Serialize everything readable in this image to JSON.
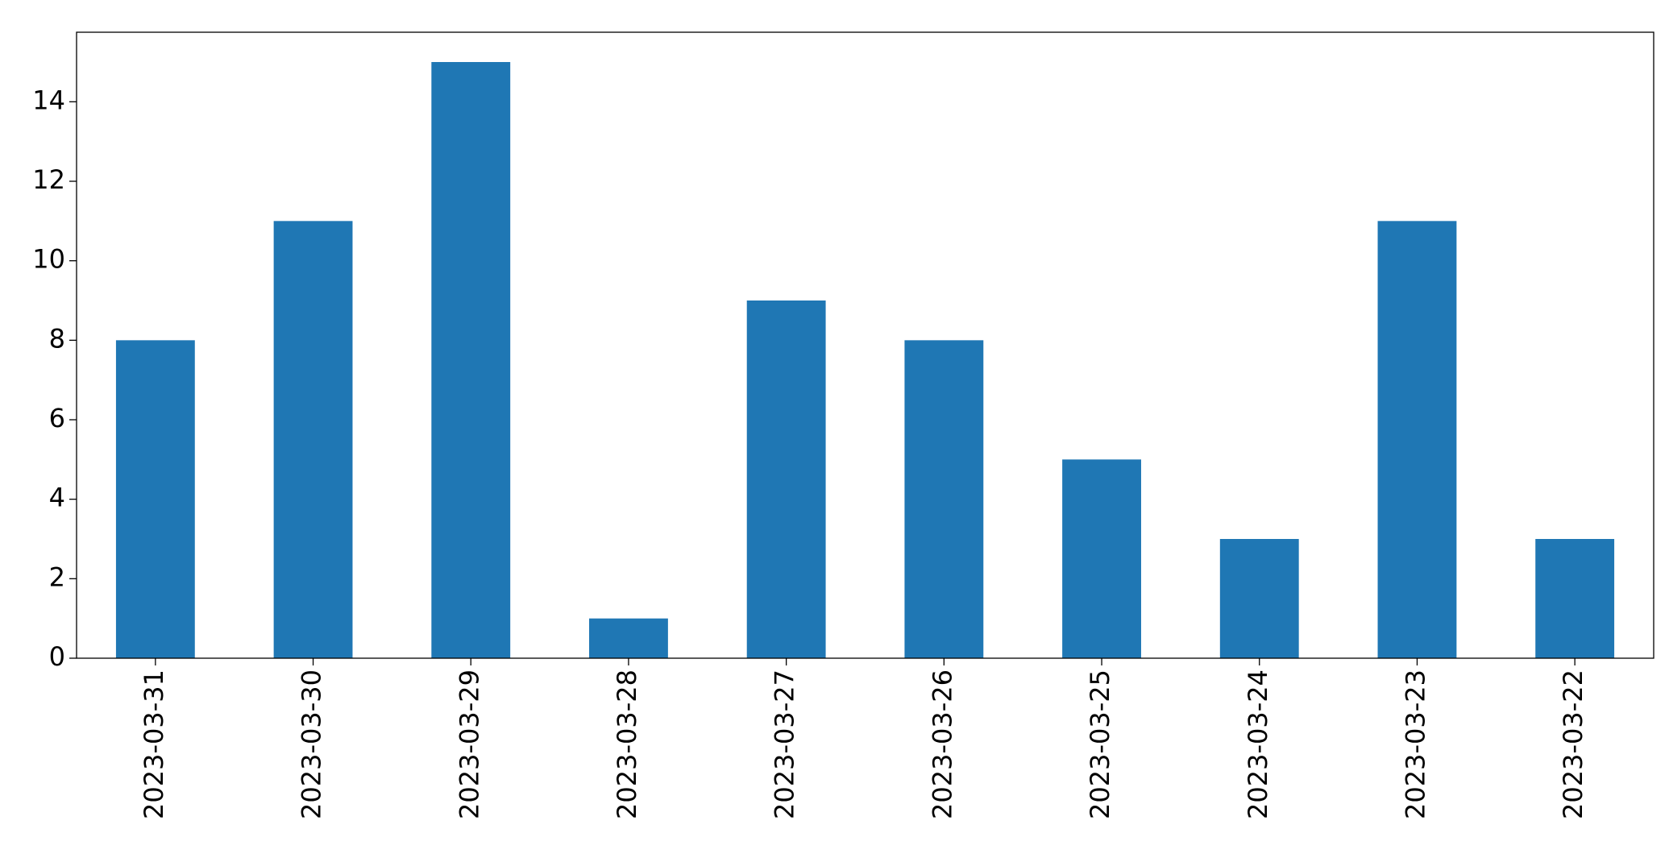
{
  "chart_data": {
    "type": "bar",
    "categories": [
      "2023-03-31",
      "2023-03-30",
      "2023-03-29",
      "2023-03-28",
      "2023-03-27",
      "2023-03-26",
      "2023-03-25",
      "2023-03-24",
      "2023-03-23",
      "2023-03-22"
    ],
    "values": [
      8,
      11,
      15,
      1,
      9,
      8,
      5,
      3,
      11,
      3
    ],
    "color": "#1f77b4",
    "ylim": [
      0,
      15.75
    ],
    "yticks": [
      0,
      2,
      4,
      6,
      8,
      10,
      12,
      14
    ],
    "grid": false
  }
}
